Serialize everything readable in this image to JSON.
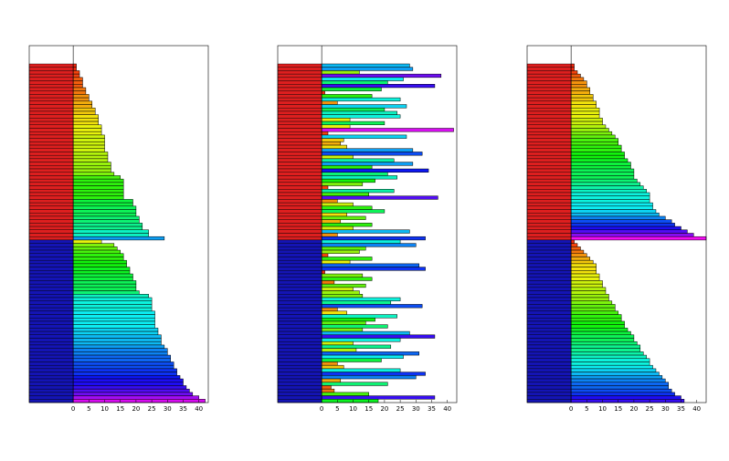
{
  "chart_data": [
    {
      "type": "barh",
      "xlim": [
        -14,
        43
      ],
      "xticks": [
        0,
        5,
        10,
        15,
        20,
        25,
        30,
        35,
        40
      ],
      "colormap": "hsv",
      "groups": [
        {
          "color": "#dd1f1f",
          "values": [
            1,
            1,
            2,
            2,
            3,
            3,
            3,
            4,
            4,
            5,
            5,
            6,
            6,
            7,
            7,
            8,
            8,
            8,
            9,
            9,
            9,
            10,
            10,
            10,
            10,
            10,
            11,
            11,
            11,
            12,
            12,
            12,
            13,
            15,
            16,
            16,
            16,
            16,
            16,
            16,
            19,
            19,
            20,
            20,
            20,
            21,
            21,
            22,
            22,
            24,
            24,
            29
          ]
        },
        {
          "color": "#1414b4",
          "values": [
            9,
            13,
            14,
            15,
            16,
            16,
            17,
            17,
            18,
            18,
            19,
            19,
            20,
            20,
            20,
            21,
            24,
            25,
            25,
            25,
            25,
            26,
            26,
            26,
            26,
            26,
            27,
            27,
            28,
            28,
            28,
            29,
            30,
            30,
            31,
            31,
            32,
            32,
            33,
            33,
            34,
            35,
            35,
            36,
            37,
            38,
            40,
            42
          ]
        }
      ]
    },
    {
      "type": "barh",
      "xlim": [
        -14,
        43
      ],
      "xticks": [
        0,
        5,
        10,
        15,
        20,
        25,
        30,
        35,
        40
      ],
      "colormap": "hsv",
      "groups": [
        {
          "color": "#dd1f1f",
          "values": [
            28,
            29,
            12,
            38,
            26,
            21,
            36,
            19,
            1,
            16,
            25,
            5,
            27,
            20,
            24,
            25,
            9,
            20,
            9,
            42,
            2,
            27,
            7,
            6,
            8,
            29,
            32,
            10,
            23,
            29,
            16,
            34,
            21,
            24,
            17,
            13,
            2,
            23,
            15,
            37,
            5,
            10,
            16,
            20,
            8,
            14,
            6,
            16,
            10,
            28,
            5,
            33
          ]
        },
        {
          "color": "#1414b4",
          "values": [
            25,
            30,
            14,
            12,
            2,
            16,
            9,
            31,
            33,
            1,
            13,
            16,
            4,
            14,
            10,
            12,
            13,
            25,
            22,
            32,
            5,
            8,
            24,
            17,
            14,
            21,
            13,
            28,
            36,
            25,
            10,
            22,
            11,
            31,
            26,
            19,
            5,
            7,
            25,
            33,
            30,
            6,
            21,
            3,
            4,
            15,
            36,
            18
          ]
        }
      ]
    },
    {
      "type": "barh",
      "xlim": [
        -14,
        43
      ],
      "xticks": [
        0,
        5,
        10,
        15,
        20,
        25,
        30,
        35,
        40
      ],
      "colormap": "hsv",
      "groups": [
        {
          "color": "#dd1f1f",
          "values": [
            1,
            1,
            2,
            3,
            4,
            5,
            5,
            6,
            6,
            7,
            7,
            8,
            8,
            9,
            9,
            9,
            10,
            10,
            11,
            12,
            13,
            14,
            15,
            15,
            16,
            16,
            17,
            17,
            18,
            19,
            19,
            20,
            20,
            20,
            21,
            22,
            23,
            24,
            25,
            25,
            25,
            26,
            26,
            27,
            28,
            30,
            32,
            33,
            35,
            37,
            39,
            43
          ]
        },
        {
          "color": "#1414b4",
          "values": [
            1,
            2,
            3,
            4,
            5,
            6,
            7,
            8,
            8,
            8,
            9,
            9,
            10,
            10,
            11,
            11,
            12,
            12,
            13,
            14,
            14,
            15,
            16,
            16,
            17,
            17,
            18,
            19,
            20,
            20,
            21,
            22,
            22,
            23,
            24,
            25,
            25,
            26,
            27,
            28,
            29,
            30,
            31,
            31,
            32,
            33,
            35,
            36
          ]
        }
      ]
    }
  ]
}
